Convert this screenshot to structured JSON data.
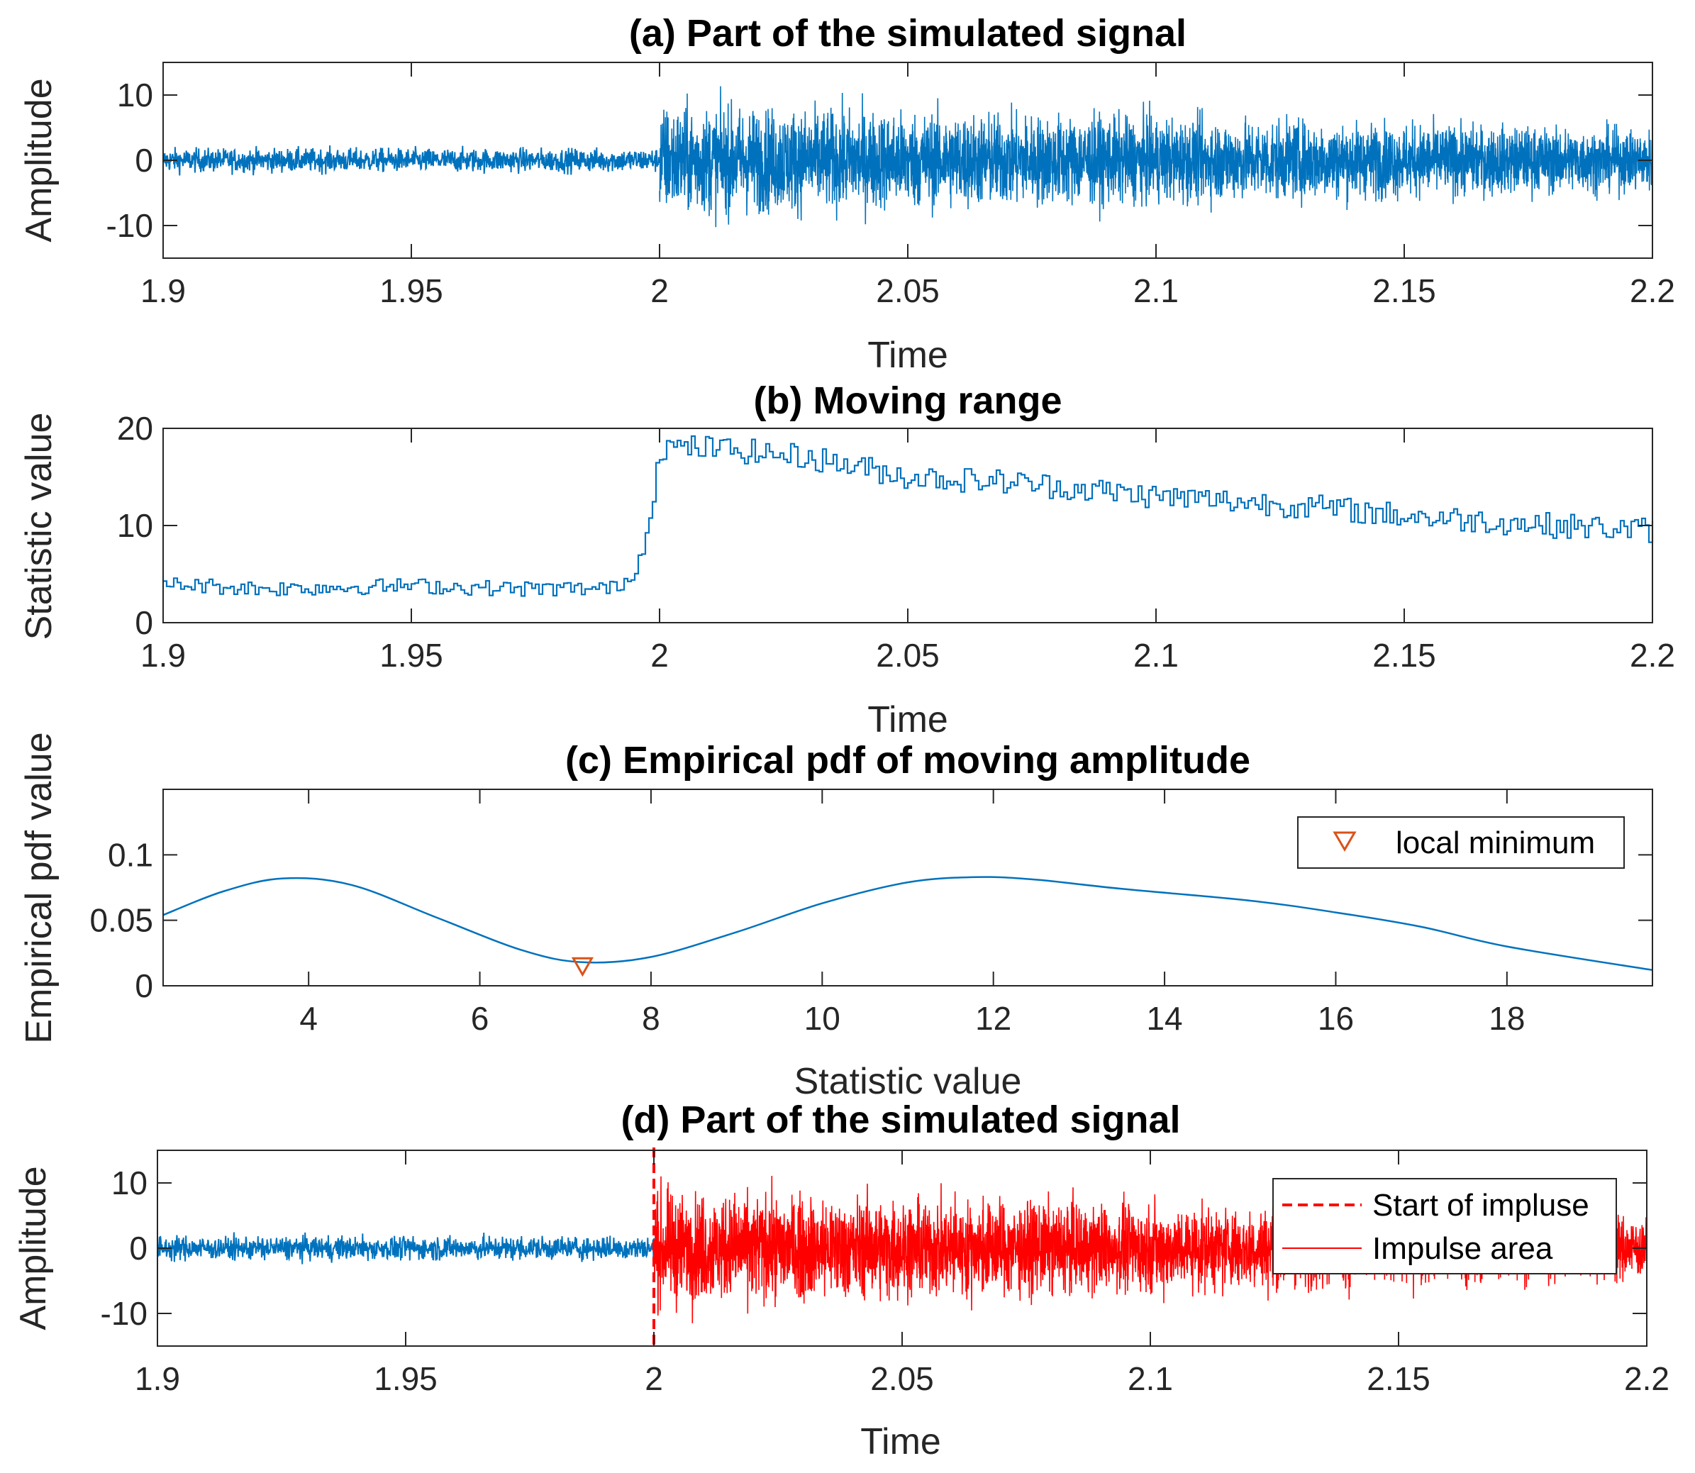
{
  "colors": {
    "signal": "#0072BD",
    "impulse": "#FF0000",
    "marker": "#D95319",
    "axis": "#262626"
  },
  "chart_data": [
    {
      "id": "a",
      "type": "line",
      "title": "(a) Part of the simulated signal",
      "xlabel": "Time",
      "ylabel": "Amplitude",
      "xlim": [
        1.9,
        2.2
      ],
      "ylim": [
        -15,
        15
      ],
      "xticks": [
        1.9,
        1.95,
        2,
        2.05,
        2.1,
        2.15,
        2.2
      ],
      "xticklabels": [
        "1.9",
        "1.95",
        "2",
        "2.05",
        "2.1",
        "2.15",
        "2.2"
      ],
      "yticks": [
        -10,
        0,
        10
      ],
      "yticklabels": [
        "-10",
        "0",
        "10"
      ],
      "series": [
        {
          "name": "signal",
          "color": "#0072BD",
          "description": "noise ±2 before t=2, impulse amplitude ~±9 decaying to ~±5 after t=2",
          "x_start": 1.9,
          "x_end": 2.2,
          "impulse_start": 2.0,
          "pre_amplitude": 2,
          "post_amplitude_start": 9,
          "post_amplitude_end": 5
        }
      ]
    },
    {
      "id": "b",
      "type": "line",
      "title": "(b) Moving range",
      "xlabel": "Time",
      "ylabel": "Statistic value",
      "xlim": [
        1.9,
        2.2
      ],
      "ylim": [
        0,
        20
      ],
      "xticks": [
        1.9,
        1.95,
        2,
        2.05,
        2.1,
        2.15,
        2.2
      ],
      "xticklabels": [
        "1.9",
        "1.95",
        "2",
        "2.05",
        "2.1",
        "2.15",
        "2.2"
      ],
      "yticks": [
        0,
        10,
        20
      ],
      "yticklabels": [
        "0",
        "10",
        "20"
      ],
      "series": [
        {
          "name": "moving range",
          "color": "#0072BD",
          "x": [
            1.9,
            1.92,
            1.95,
            1.97,
            1.99,
            1.995,
            1.998,
            2.0,
            2.01,
            2.03,
            2.05,
            2.07,
            2.1,
            2.13,
            2.15,
            2.18,
            2.2
          ],
          "y": [
            4,
            3.5,
            3.8,
            3.5,
            3.5,
            5,
            12,
            18,
            18,
            17,
            15,
            14.5,
            13,
            12,
            11,
            10,
            9.5
          ]
        }
      ]
    },
    {
      "id": "c",
      "type": "line",
      "title": "(c) Empirical pdf of moving amplitude",
      "xlabel": "Statistic value",
      "ylabel": "Empirical pdf value",
      "xlim": [
        2.3,
        19.7
      ],
      "ylim": [
        0,
        0.15
      ],
      "xticks": [
        4,
        6,
        8,
        10,
        12,
        14,
        16,
        18
      ],
      "xticklabels": [
        "4",
        "6",
        "8",
        "10",
        "12",
        "14",
        "16",
        "18"
      ],
      "yticks": [
        0,
        0.05,
        0.1
      ],
      "yticklabels": [
        "0",
        "0.05",
        "0.1"
      ],
      "series": [
        {
          "name": "pdf",
          "color": "#0072BD",
          "x": [
            2.3,
            3,
            3.7,
            4.5,
            5.5,
            6.5,
            7.2,
            8,
            9,
            10,
            11,
            11.8,
            12.5,
            13.5,
            15,
            16,
            17,
            18,
            19.7
          ],
          "y": [
            0.054,
            0.072,
            0.082,
            0.077,
            0.052,
            0.027,
            0.018,
            0.022,
            0.041,
            0.063,
            0.079,
            0.083,
            0.081,
            0.074,
            0.065,
            0.056,
            0.045,
            0.03,
            0.012
          ]
        }
      ],
      "marker": {
        "x": 7.2,
        "y": 0.015,
        "label": "local minimum",
        "symbol": "triangle-down",
        "color": "#D95319"
      },
      "legend": {
        "location": "top-right",
        "entries": [
          "local minimum"
        ]
      }
    },
    {
      "id": "d",
      "type": "line",
      "title": "(d) Part of the simulated signal",
      "xlabel": "Time",
      "ylabel": "Amplitude",
      "xlim": [
        1.9,
        2.2
      ],
      "ylim": [
        -15,
        15
      ],
      "xticks": [
        1.9,
        1.95,
        2,
        2.05,
        2.1,
        2.15,
        2.2
      ],
      "xticklabels": [
        "1.9",
        "1.95",
        "2",
        "2.05",
        "2.1",
        "2.15",
        "2.2"
      ],
      "yticks": [
        -10,
        0,
        10
      ],
      "yticklabels": [
        "-10",
        "0",
        "10"
      ],
      "start_line": {
        "x": 2.0,
        "label": "Start of impluse",
        "color": "#FF0000",
        "style": "dashed"
      },
      "series": [
        {
          "name": "signal",
          "color": "#0072BD",
          "x_start": 1.9,
          "x_end": 2.0,
          "amplitude": 2
        },
        {
          "name": "Impulse area",
          "color": "#FF0000",
          "x_start": 2.0,
          "x_end": 2.2,
          "amplitude_start": 9,
          "amplitude_end": 5
        }
      ],
      "legend": {
        "location": "top-right",
        "entries": [
          "Start of impluse",
          "Impulse area"
        ]
      }
    }
  ]
}
